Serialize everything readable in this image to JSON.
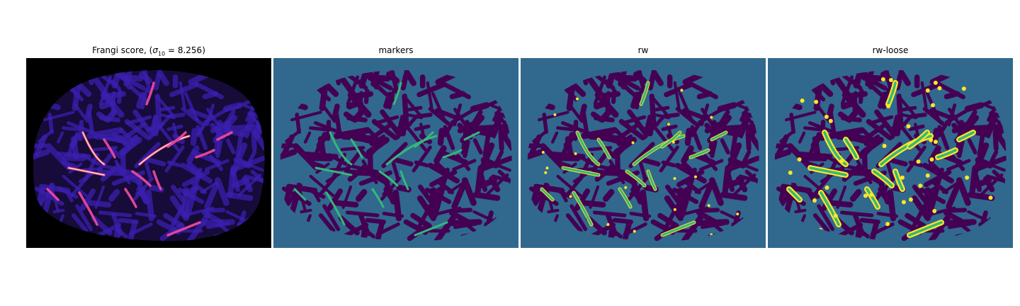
{
  "panels": [
    {
      "title_prefix": "Frangi score, (",
      "title_symbol": "σ",
      "title_sub": "10",
      "title_suffix": " = 8.256)",
      "style": "frangi"
    },
    {
      "title": "markers",
      "style": "markers"
    },
    {
      "title": "rw",
      "style": "rw"
    },
    {
      "title": "rw-loose",
      "style": "loose"
    }
  ],
  "colors": {
    "frangi_background": "#000000",
    "frangi_tissue": "#160b39",
    "frangi_mid": "#3b1fb0",
    "frangi_vessel": "#e0459a",
    "frangi_peak": "#fcffa4",
    "label_background": "#31688e",
    "label_dark": "#440154",
    "label_vessel": "#35b779",
    "label_loose": "#fde725"
  }
}
